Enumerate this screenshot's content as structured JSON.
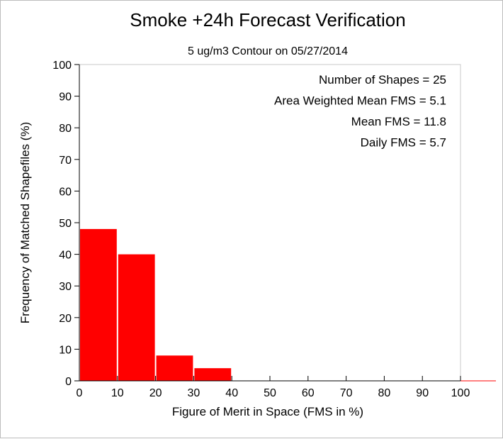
{
  "chart_data": {
    "type": "bar",
    "title": "Smoke +24h Forecast Verification",
    "subtitle": "5 ug/m3 Contour on 05/27/2014",
    "xlabel": "Figure of Merit in Space (FMS in %)",
    "ylabel": "Frequency of Matched Shapefiles (%)",
    "xlim": [
      0,
      100
    ],
    "ylim": [
      0,
      100
    ],
    "bin_width": 10,
    "bins": [
      {
        "start": 0,
        "end": 10,
        "value": 48
      },
      {
        "start": 10,
        "end": 20,
        "value": 40
      },
      {
        "start": 20,
        "end": 30,
        "value": 8
      },
      {
        "start": 30,
        "end": 40,
        "value": 4
      },
      {
        "start": 40,
        "end": 50,
        "value": 0
      },
      {
        "start": 50,
        "end": 60,
        "value": 0
      },
      {
        "start": 60,
        "end": 70,
        "value": 0
      },
      {
        "start": 70,
        "end": 80,
        "value": 0
      },
      {
        "start": 80,
        "end": 90,
        "value": 0
      },
      {
        "start": 90,
        "end": 100,
        "value": 0
      }
    ],
    "x_ticks": [
      "0",
      "10",
      "20",
      "30",
      "40",
      "50",
      "60",
      "70",
      "80",
      "90",
      "100"
    ],
    "y_ticks": [
      "0",
      "10",
      "20",
      "30",
      "40",
      "50",
      "60",
      "70",
      "80",
      "90",
      "100"
    ],
    "annotations": [
      "Number of Shapes = 25",
      "Area Weighted Mean FMS = 5.1",
      "Mean FMS = 11.8",
      "Daily FMS = 5.7"
    ],
    "bar_color": "#ff0000",
    "grid": false,
    "legend": "none"
  }
}
